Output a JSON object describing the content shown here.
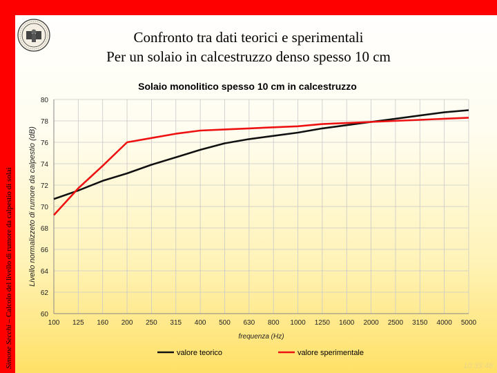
{
  "slide": {
    "side_author": "Simone Secchi",
    "side_text": " – Calcolo del livello di rumore da calpestio di solai",
    "title_line1": "Confronto tra dati teorici e sperimentali",
    "title_line2": "Per un solaio in calcestruzzo denso spesso 10 cm",
    "timestamp": "10:39:46",
    "logo_icon": "university-seal-icon",
    "colors": {
      "accent": "#ff0000",
      "background_top": "#ffffff",
      "background_bottom": "#ffe066"
    }
  },
  "chart_data": {
    "type": "line",
    "title": "Solaio monolitico spesso 10 cm in calcestruzzo",
    "xlabel": "frequenza (Hz)",
    "ylabel": "Livello normalizzeto di rumore da calpestio (dB)",
    "categories": [
      "100",
      "125",
      "160",
      "200",
      "250",
      "315",
      "400",
      "500",
      "630",
      "800",
      "1000",
      "1250",
      "1600",
      "2000",
      "2500",
      "3150",
      "4000",
      "5000"
    ],
    "ylim": [
      60,
      80
    ],
    "yticks": [
      60,
      62,
      64,
      66,
      68,
      70,
      72,
      74,
      76,
      78,
      80
    ],
    "grid": true,
    "legend_position": "bottom",
    "series": [
      {
        "name": "valore teorico",
        "color": "#111111",
        "values": [
          70.7,
          71.5,
          72.4,
          73.1,
          73.9,
          74.6,
          75.3,
          75.9,
          76.3,
          76.6,
          76.9,
          77.3,
          77.6,
          77.9,
          78.2,
          78.5,
          78.8,
          79.0
        ]
      },
      {
        "name": "valore sperimentale",
        "color": "#ee1111",
        "values": [
          69.2,
          71.7,
          73.8,
          76.0,
          76.4,
          76.8,
          77.1,
          77.2,
          77.3,
          77.4,
          77.5,
          77.7,
          77.8,
          77.9,
          78.0,
          78.1,
          78.2,
          78.3
        ]
      }
    ]
  }
}
